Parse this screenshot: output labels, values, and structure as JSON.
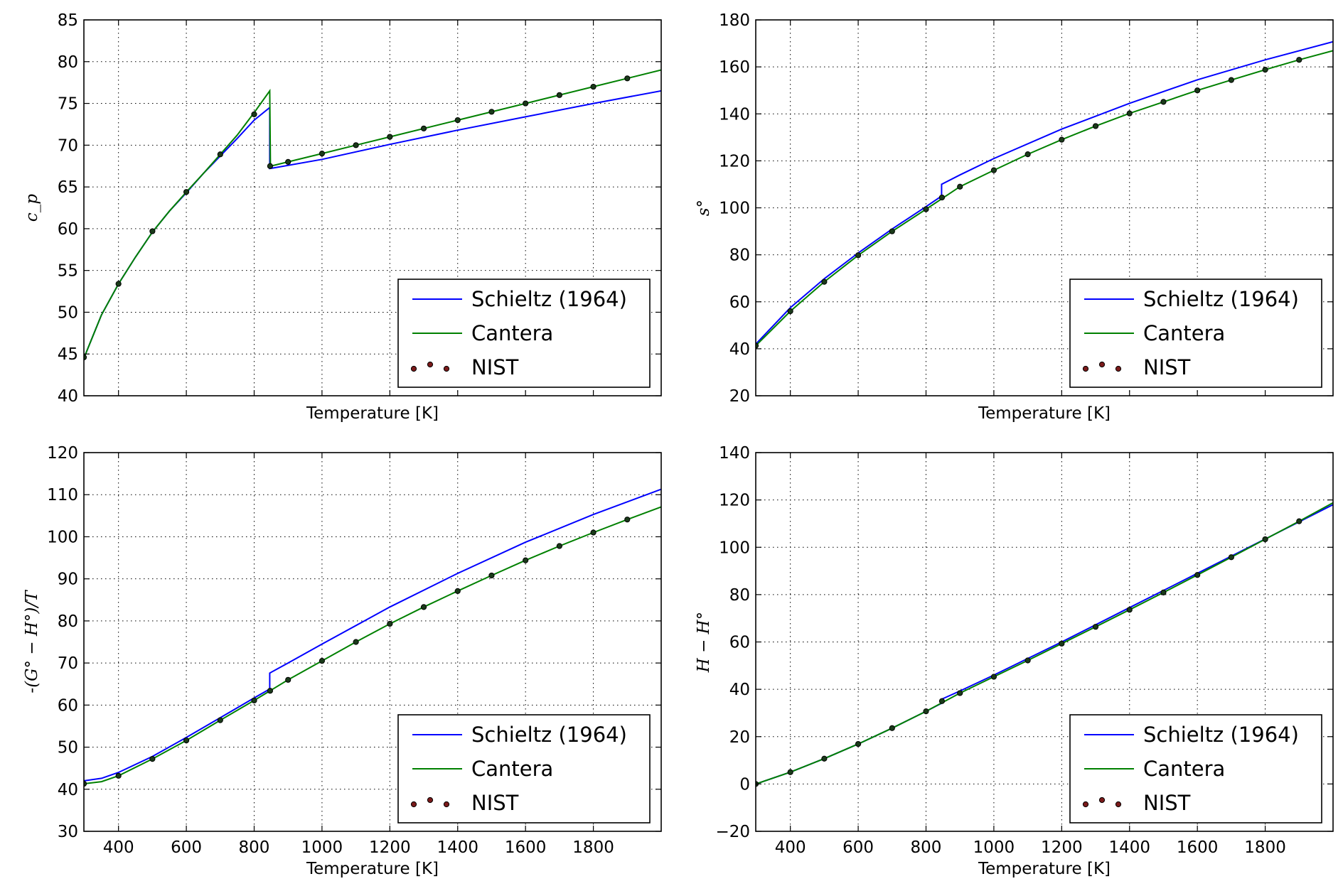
{
  "chart_data": [
    {
      "type": "line",
      "xlabel": "Temperature [K]",
      "ylabel": "c_p",
      "xlim": [
        298,
        2000
      ],
      "ylim": [
        40,
        85
      ],
      "yticks": [
        40,
        45,
        50,
        55,
        60,
        65,
        70,
        75,
        80,
        85
      ],
      "xticks": [],
      "grid": true,
      "legend": [
        "Schieltz (1964)",
        "Cantera",
        "NIST"
      ],
      "legend_position": "lower-right",
      "series": [
        {
          "name": "Schieltz (1964)",
          "style": "line",
          "color": "#0000ff",
          "x": [
            298,
            350,
            400,
            450,
            500,
            550,
            600,
            650,
            700,
            750,
            800,
            846,
            846,
            860,
            1000,
            1200,
            1400,
            1600,
            1800,
            2000
          ],
          "y": [
            44.5,
            49.7,
            53.4,
            56.6,
            59.6,
            62.1,
            64.3,
            66.6,
            68.7,
            70.8,
            73.0,
            74.5,
            67.2,
            67.3,
            68.3,
            70.1,
            71.8,
            73.4,
            75.0,
            76.5
          ]
        },
        {
          "name": "Cantera",
          "style": "line",
          "color": "#008000",
          "x": [
            298,
            350,
            400,
            450,
            500,
            550,
            600,
            650,
            700,
            750,
            800,
            846,
            848,
            860,
            1000,
            1200,
            1400,
            1600,
            1800,
            2000
          ],
          "y": [
            44.5,
            49.7,
            53.4,
            56.6,
            59.6,
            62.1,
            64.4,
            66.6,
            68.9,
            71.2,
            73.9,
            76.5,
            67.5,
            67.6,
            69.0,
            71.0,
            73.0,
            75.0,
            77.0,
            79.0
          ]
        },
        {
          "name": "NIST",
          "style": "markers",
          "color": "#000000",
          "x": [
            298,
            400,
            500,
            600,
            700,
            800,
            847,
            900,
            1000,
            1100,
            1200,
            1300,
            1400,
            1500,
            1600,
            1700,
            1800,
            1900
          ],
          "y": [
            44.6,
            53.4,
            59.7,
            64.4,
            68.9,
            73.7,
            67.5,
            68.0,
            69.0,
            70.0,
            71.0,
            72.0,
            73.0,
            74.0,
            75.0,
            76.0,
            77.0,
            78.0
          ]
        }
      ]
    },
    {
      "type": "line",
      "xlabel": "Temperature [K]",
      "ylabel": "s°",
      "xlim": [
        298,
        2000
      ],
      "ylim": [
        20,
        180
      ],
      "yticks": [
        20,
        40,
        60,
        80,
        100,
        120,
        140,
        160,
        180
      ],
      "xticks": [],
      "grid": true,
      "legend": [
        "Schieltz (1964)",
        "Cantera",
        "NIST"
      ],
      "legend_position": "lower-right",
      "series": [
        {
          "name": "Schieltz (1964)",
          "style": "line",
          "color": "#0000ff",
          "x": [
            298,
            400,
            500,
            600,
            700,
            800,
            846,
            846,
            900,
            1000,
            1200,
            1400,
            1600,
            1800,
            2000
          ],
          "y": [
            42.0,
            57.5,
            69.8,
            80.8,
            91.0,
            100.5,
            105.0,
            110.0,
            114.0,
            121.0,
            133.5,
            144.5,
            154.5,
            163.0,
            170.7
          ]
        },
        {
          "name": "Cantera",
          "style": "line",
          "color": "#008000",
          "x": [
            298,
            400,
            500,
            600,
            700,
            800,
            900,
            1000,
            1100,
            1200,
            1300,
            1400,
            1500,
            1600,
            1700,
            1800,
            1900,
            2000
          ],
          "y": [
            41.3,
            56.0,
            68.5,
            79.8,
            90.0,
            99.4,
            109.0,
            116.0,
            122.8,
            129.0,
            134.8,
            140.2,
            145.1,
            150.0,
            154.4,
            158.8,
            163.0,
            166.9
          ]
        },
        {
          "name": "NIST",
          "style": "markers",
          "color": "#000000",
          "x": [
            298,
            400,
            500,
            600,
            700,
            800,
            847,
            900,
            1000,
            1100,
            1200,
            1300,
            1400,
            1500,
            1600,
            1700,
            1800,
            1900
          ],
          "y": [
            41.3,
            56.0,
            68.5,
            79.8,
            90.0,
            99.4,
            104.4,
            109.0,
            116.0,
            122.8,
            129.0,
            134.8,
            140.2,
            145.1,
            150.0,
            154.4,
            158.8,
            163.0
          ]
        }
      ]
    },
    {
      "type": "line",
      "xlabel": "Temperature [K]",
      "ylabel": "-(G° − H°)/T",
      "xlim": [
        298,
        2000
      ],
      "ylim": [
        30,
        120
      ],
      "yticks": [
        30,
        40,
        50,
        60,
        70,
        80,
        90,
        100,
        110,
        120
      ],
      "xticks": [
        400,
        600,
        800,
        1000,
        1200,
        1400,
        1600,
        1800
      ],
      "grid": true,
      "legend": [
        "Schieltz (1964)",
        "Cantera",
        "NIST"
      ],
      "legend_position": "lower-right",
      "series": [
        {
          "name": "Schieltz (1964)",
          "style": "line",
          "color": "#0000ff",
          "x": [
            298,
            350,
            400,
            500,
            600,
            700,
            800,
            846,
            846,
            900,
            1000,
            1200,
            1400,
            1600,
            1800,
            2000
          ],
          "y": [
            42.0,
            42.6,
            44.0,
            47.8,
            52.3,
            57.0,
            61.7,
            63.8,
            67.6,
            70.0,
            74.5,
            83.3,
            91.3,
            98.7,
            105.3,
            111.3
          ]
        },
        {
          "name": "Cantera",
          "style": "line",
          "color": "#008000",
          "x": [
            298,
            350,
            400,
            500,
            600,
            700,
            800,
            900,
            1000,
            1100,
            1200,
            1300,
            1400,
            1500,
            1600,
            1700,
            1800,
            1900,
            2000
          ],
          "y": [
            41.3,
            41.8,
            43.2,
            47.2,
            51.6,
            56.4,
            61.1,
            66.0,
            70.5,
            75.0,
            79.3,
            83.3,
            87.1,
            90.8,
            94.4,
            97.8,
            101.0,
            104.1,
            107.1
          ]
        },
        {
          "name": "NIST",
          "style": "markers",
          "color": "#000000",
          "x": [
            298,
            400,
            500,
            600,
            700,
            800,
            847,
            900,
            1000,
            1100,
            1200,
            1300,
            1400,
            1500,
            1600,
            1700,
            1800,
            1900
          ],
          "y": [
            41.3,
            43.2,
            47.2,
            51.6,
            56.4,
            61.1,
            63.4,
            66.0,
            70.5,
            75.0,
            79.3,
            83.3,
            87.1,
            90.8,
            94.4,
            97.8,
            101.0,
            104.1
          ]
        }
      ]
    },
    {
      "type": "line",
      "xlabel": "Temperature [K]",
      "ylabel": "H − H°",
      "xlim": [
        298,
        2000
      ],
      "ylim": [
        -20,
        140
      ],
      "yticks": [
        -20,
        0,
        20,
        40,
        60,
        80,
        100,
        120,
        140
      ],
      "xticks": [
        400,
        600,
        800,
        1000,
        1200,
        1400,
        1600,
        1800
      ],
      "grid": true,
      "legend": [
        "Schieltz (1964)",
        "Cantera",
        "NIST"
      ],
      "legend_position": "lower-right",
      "series": [
        {
          "name": "Schieltz (1964)",
          "style": "line",
          "color": "#0000ff",
          "x": [
            298,
            400,
            500,
            600,
            700,
            800,
            846,
            846,
            900,
            1000,
            1200,
            1400,
            1600,
            1800,
            2000
          ],
          "y": [
            0,
            5.0,
            10.7,
            16.9,
            23.6,
            30.7,
            34.1,
            35.8,
            39.3,
            46.0,
            60.0,
            74.5,
            89.0,
            103.5,
            118.0
          ]
        },
        {
          "name": "Cantera",
          "style": "line",
          "color": "#008000",
          "x": [
            298,
            400,
            500,
            600,
            700,
            800,
            900,
            1000,
            1100,
            1200,
            1300,
            1400,
            1500,
            1600,
            1700,
            1800,
            1900,
            2000
          ],
          "y": [
            0,
            5.0,
            10.7,
            16.9,
            23.6,
            30.7,
            38.4,
            45.3,
            52.2,
            59.3,
            66.4,
            73.6,
            80.9,
            88.3,
            95.8,
            103.4,
            111.0,
            118.8
          ]
        },
        {
          "name": "NIST",
          "style": "markers",
          "color": "#000000",
          "x": [
            298,
            400,
            500,
            600,
            700,
            800,
            847,
            900,
            1000,
            1100,
            1200,
            1300,
            1400,
            1500,
            1600,
            1700,
            1800,
            1900
          ],
          "y": [
            0,
            5.0,
            10.7,
            16.9,
            23.6,
            30.7,
            35.0,
            38.4,
            45.3,
            52.2,
            59.3,
            66.4,
            73.6,
            80.9,
            88.3,
            95.8,
            103.4,
            111.0
          ]
        }
      ]
    }
  ]
}
